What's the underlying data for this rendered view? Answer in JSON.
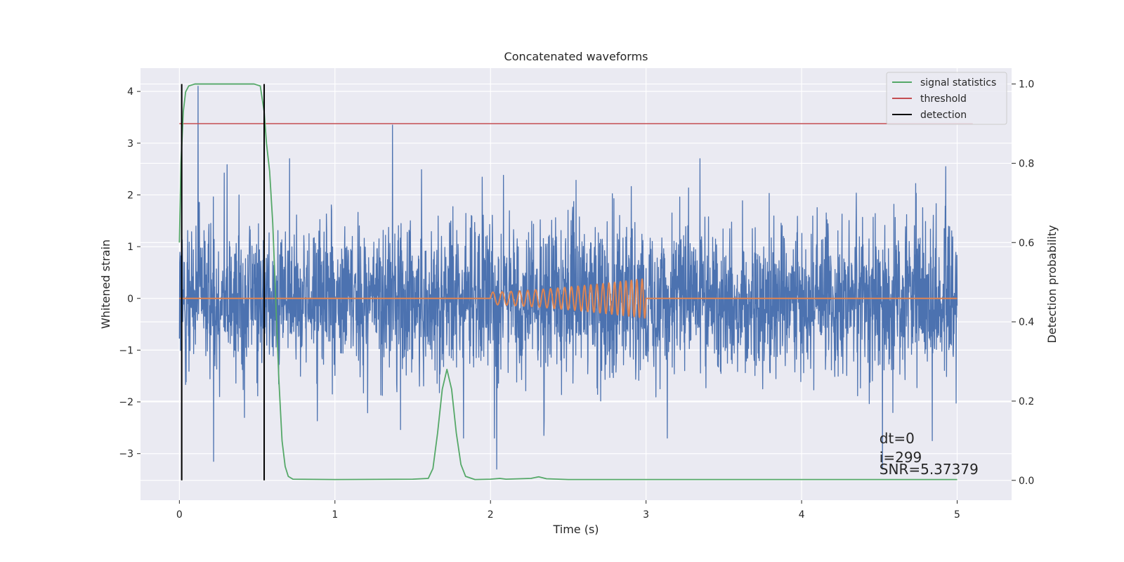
{
  "chart_data": {
    "type": "line",
    "title": "Concatenated waveforms",
    "xlabel": "Time (s)",
    "ylabel": "Whitened strain",
    "ylabel_right": "Detection probability",
    "xlim": [
      -0.25,
      5.35
    ],
    "ylim": [
      -3.9,
      4.45
    ],
    "ylim_right": [
      -0.05,
      1.04
    ],
    "xticks": [
      0,
      1,
      2,
      3,
      4,
      5
    ],
    "xtick_labels": [
      "0",
      "1",
      "2",
      "3",
      "4",
      "5"
    ],
    "yticks": [
      -3,
      -2,
      -1,
      0,
      1,
      2,
      3,
      4
    ],
    "ytick_labels": [
      "−3",
      "−2",
      "−1",
      "0",
      "1",
      "2",
      "3",
      "4"
    ],
    "yticks_right": [
      0.0,
      0.2,
      0.4,
      0.6,
      0.8,
      1.0
    ],
    "ytick_labels_right": [
      "0.0",
      "0.2",
      "0.4",
      "0.6",
      "0.8",
      "1.0"
    ],
    "grid": true,
    "legend_position": "top-right",
    "legend": [
      {
        "label": "signal statistics",
        "color": "#55a868"
      },
      {
        "label": "threshold",
        "color": "#c44e52"
      },
      {
        "label": "detection",
        "color": "#000000"
      }
    ],
    "noise_series": {
      "color": "#4c72b0",
      "x_range": [
        0,
        5
      ],
      "typical_amplitude": 1.0,
      "notable_spikes": [
        {
          "x": 0.12,
          "y": 4.1
        },
        {
          "x": 1.37,
          "y": 3.35
        },
        {
          "x": 0.22,
          "y": -3.15
        },
        {
          "x": 2.04,
          "y": -3.3
        },
        {
          "x": 4.52,
          "y": -3.3
        },
        {
          "x": 4.84,
          "y": -2.75
        }
      ]
    },
    "injected_signal": {
      "color": "#dd8452",
      "x_range": [
        2.0,
        3.0
      ],
      "amplitude_start": 0.12,
      "amplitude_end": 0.38,
      "cycles": 23
    },
    "signal_statistics": {
      "color": "#55a868",
      "axis": "right",
      "points": [
        [
          0.0,
          0.6
        ],
        [
          0.01,
          0.8
        ],
        [
          0.025,
          0.93
        ],
        [
          0.04,
          0.98
        ],
        [
          0.06,
          0.995
        ],
        [
          0.1,
          1.0
        ],
        [
          0.48,
          1.0
        ],
        [
          0.52,
          0.995
        ],
        [
          0.545,
          0.93
        ],
        [
          0.56,
          0.85
        ],
        [
          0.58,
          0.78
        ],
        [
          0.6,
          0.65
        ],
        [
          0.62,
          0.45
        ],
        [
          0.64,
          0.25
        ],
        [
          0.66,
          0.1
        ],
        [
          0.68,
          0.035
        ],
        [
          0.7,
          0.01
        ],
        [
          0.73,
          0.003
        ],
        [
          1.0,
          0.002
        ],
        [
          1.5,
          0.003
        ],
        [
          1.6,
          0.005
        ],
        [
          1.63,
          0.03
        ],
        [
          1.66,
          0.12
        ],
        [
          1.69,
          0.23
        ],
        [
          1.72,
          0.28
        ],
        [
          1.75,
          0.23
        ],
        [
          1.78,
          0.12
        ],
        [
          1.81,
          0.04
        ],
        [
          1.84,
          0.01
        ],
        [
          1.9,
          0.002
        ],
        [
          2.0,
          0.003
        ],
        [
          2.06,
          0.005
        ],
        [
          2.1,
          0.003
        ],
        [
          2.26,
          0.005
        ],
        [
          2.31,
          0.009
        ],
        [
          2.36,
          0.004
        ],
        [
          2.5,
          0.002
        ],
        [
          3.0,
          0.002
        ],
        [
          5.0,
          0.002
        ]
      ]
    },
    "threshold": {
      "color": "#c44e52",
      "axis": "right",
      "value": 0.9,
      "x_range": [
        0,
        5.1
      ]
    },
    "detections": {
      "color": "#000000",
      "x": [
        0.015,
        0.545
      ]
    },
    "annotations": [
      "dt=0",
      "i=299",
      "SNR=5.37379"
    ]
  }
}
